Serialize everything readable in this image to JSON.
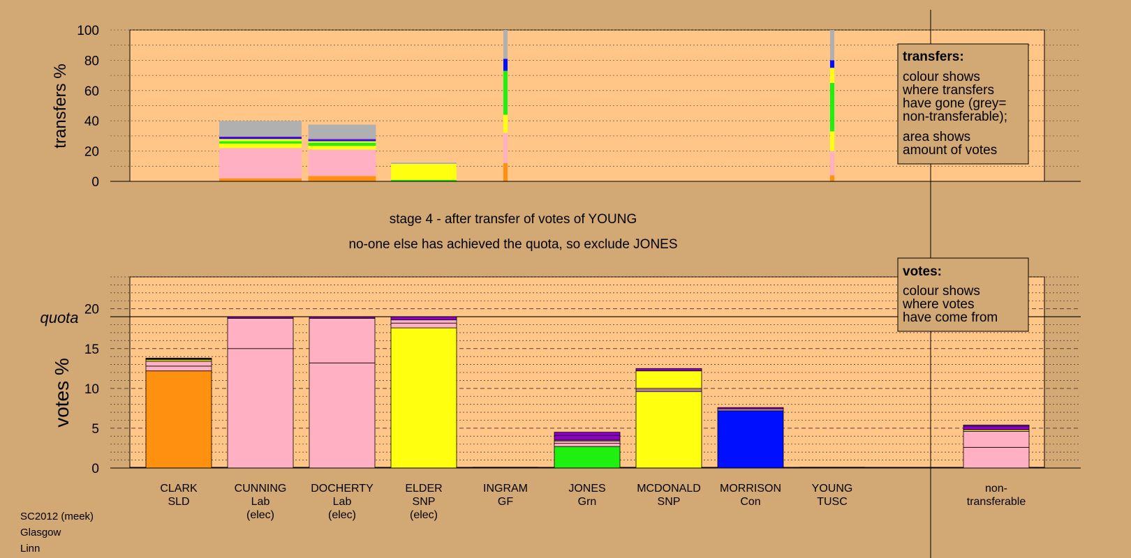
{
  "colors": {
    "background": "#d2a874",
    "plot_bg": "#ffc687",
    "SLD": "#ff9010",
    "Lab": "#ffb0c3",
    "SNP": "#ffff10",
    "GF": "#b0b0b0",
    "Grn": "#20f010",
    "Con": "#0010ff",
    "TUSC": "#8e00c8",
    "nontransferable": "#b0b0b0",
    "separator": "#000000"
  },
  "stage_title": "stage 4 - after transfer of votes of YOUNG",
  "stage_subtitle": "no-one else has achieved the quota, so exclude JONES",
  "footer": [
    "SC2012 (meek)",
    "Glasgow",
    "Linn"
  ],
  "legend_transfers": {
    "heading": "transfers:",
    "lines_a": [
      "colour shows",
      "where transfers",
      "have gone (grey=",
      "non-transferable);"
    ],
    "lines_b": [
      "area shows",
      "amount of votes"
    ]
  },
  "legend_votes": {
    "heading": "votes:",
    "lines": [
      "colour shows",
      "where votes",
      "have come from"
    ]
  },
  "chart_data": [
    {
      "type": "bar",
      "stacked": true,
      "ylabel": "transfers %",
      "ylim": [
        0,
        100
      ],
      "yticks": [
        0,
        20,
        40,
        60,
        80,
        100
      ],
      "grid": true,
      "categories": [
        "CLARK SLD",
        "CUNNING Lab (elec)",
        "DOCHERTY Lab (elec)",
        "ELDER SNP (elec)",
        "INGRAM GF",
        "JONES Grn",
        "MCDONALD SNP",
        "MORRISON Con",
        "YOUNG TUSC"
      ],
      "note": "segment colours show destination party; bar width shows amount of votes",
      "bars": [
        {
          "candidate": "CUNNING",
          "width_votes": 3.9,
          "segments": [
            {
              "to": "SLD",
              "value": 2
            },
            {
              "to": "Lab",
              "value": 20
            },
            {
              "to": "SNP",
              "value": 3
            },
            {
              "to": "Grn",
              "value": 1.5
            },
            {
              "to": "SNP",
              "value": 1.5
            },
            {
              "to": "Con",
              "value": 1
            },
            {
              "to": "TUSC",
              "value": 0.5
            },
            {
              "to": "nontransferable",
              "value": 10.5
            }
          ]
        },
        {
          "candidate": "DOCHERTY",
          "width_votes": 3.2,
          "segments": [
            {
              "to": "SLD",
              "value": 3.5
            },
            {
              "to": "Lab",
              "value": 17.5
            },
            {
              "to": "SNP",
              "value": 2.5
            },
            {
              "to": "Grn",
              "value": 2
            },
            {
              "to": "SNP",
              "value": 1
            },
            {
              "to": "Con",
              "value": 1
            },
            {
              "to": "TUSC",
              "value": 0.5
            },
            {
              "to": "nontransferable",
              "value": 9.5
            }
          ]
        },
        {
          "candidate": "ELDER",
          "width_votes": 3.1,
          "segments": [
            {
              "to": "Grn",
              "value": 1
            },
            {
              "to": "SNP",
              "value": 10.5
            },
            {
              "to": "nontransferable",
              "value": 1
            }
          ]
        },
        {
          "candidate": "INGRAM",
          "width_votes": 0.2,
          "segments": [
            {
              "to": "SLD",
              "value": 12
            },
            {
              "to": "Lab",
              "value": 20
            },
            {
              "to": "SNP",
              "value": 12
            },
            {
              "to": "Grn",
              "value": 29
            },
            {
              "to": "Con",
              "value": 8
            },
            {
              "to": "nontransferable",
              "value": 19
            }
          ]
        },
        {
          "candidate": "YOUNG",
          "width_votes": 0.2,
          "segments": [
            {
              "to": "SLD",
              "value": 4
            },
            {
              "to": "Lab",
              "value": 16
            },
            {
              "to": "SNP",
              "value": 13
            },
            {
              "to": "Grn",
              "value": 32
            },
            {
              "to": "SNP",
              "value": 10
            },
            {
              "to": "Con",
              "value": 5
            },
            {
              "to": "nontransferable",
              "value": 20
            }
          ]
        }
      ]
    },
    {
      "type": "bar",
      "stacked": true,
      "ylabel": "votes %",
      "ylim": [
        0,
        24
      ],
      "yticks": [
        0,
        5,
        10,
        15,
        20
      ],
      "quota_label": "quota",
      "quota": 19.0,
      "grid": true,
      "groups": [
        {
          "name": "CLARK",
          "party": "SLD",
          "note": ""
        },
        {
          "name": "CUNNING",
          "party": "Lab",
          "note": "(elec)"
        },
        {
          "name": "DOCHERTY",
          "party": "Lab",
          "note": "(elec)"
        },
        {
          "name": "ELDER",
          "party": "SNP",
          "note": "(elec)"
        },
        {
          "name": "INGRAM",
          "party": "GF",
          "note": ""
        },
        {
          "name": "JONES",
          "party": "Grn",
          "note": ""
        },
        {
          "name": "MCDONALD",
          "party": "SNP",
          "note": ""
        },
        {
          "name": "MORRISON",
          "party": "Con",
          "note": ""
        },
        {
          "name": "YOUNG",
          "party": "TUSC",
          "note": ""
        },
        {
          "name": "non-",
          "party": "transferable",
          "note": ""
        }
      ],
      "bars": [
        {
          "candidate": "CLARK",
          "segments": [
            {
              "from": "SLD",
              "value": 12.2
            },
            {
              "from": "Lab",
              "value": 0.6
            },
            {
              "from": "Lab",
              "value": 0.6
            },
            {
              "from": "SNP",
              "value": 0.2
            },
            {
              "from": "Grn",
              "value": 0.1
            },
            {
              "from": "TUSC",
              "value": 0.1
            }
          ]
        },
        {
          "candidate": "CUNNING",
          "segments": [
            {
              "from": "Lab",
              "value": 15.0
            },
            {
              "from": "Lab",
              "value": 3.8
            },
            {
              "from": "TUSC",
              "value": 0.2
            }
          ]
        },
        {
          "candidate": "DOCHERTY",
          "segments": [
            {
              "from": "Lab",
              "value": 13.2
            },
            {
              "from": "Lab",
              "value": 5.6
            },
            {
              "from": "TUSC",
              "value": 0.2
            }
          ]
        },
        {
          "candidate": "ELDER",
          "segments": [
            {
              "from": "SNP",
              "value": 17.6
            },
            {
              "from": "Lab",
              "value": 0.6
            },
            {
              "from": "Lab",
              "value": 0.4
            },
            {
              "from": "TUSC",
              "value": 0.4
            }
          ]
        },
        {
          "candidate": "INGRAM",
          "segments": []
        },
        {
          "candidate": "JONES",
          "segments": [
            {
              "from": "Grn",
              "value": 2.7
            },
            {
              "from": "Lab",
              "value": 0.4
            },
            {
              "from": "Lab",
              "value": 0.3
            },
            {
              "from": "SNP",
              "value": 0.1
            },
            {
              "from": "TUSC",
              "value": 0.6
            },
            {
              "from": "TUSC",
              "value": 0.4
            }
          ]
        },
        {
          "candidate": "MCDONALD",
          "segments": [
            {
              "from": "SNP",
              "value": 9.6
            },
            {
              "from": "Lab",
              "value": 0.2
            },
            {
              "from": "Lab",
              "value": 0.2
            },
            {
              "from": "SNP",
              "value": 2.2
            },
            {
              "from": "TUSC",
              "value": 0.3
            }
          ]
        },
        {
          "candidate": "MORRISON",
          "segments": [
            {
              "from": "Con",
              "value": 7.2
            },
            {
              "from": "Lab",
              "value": 0.2
            },
            {
              "from": "TUSC",
              "value": 0.2
            }
          ]
        },
        {
          "candidate": "YOUNG",
          "segments": []
        },
        {
          "candidate": "non-transferable",
          "segments": [
            {
              "from": "Lab",
              "value": 2.6
            },
            {
              "from": "Lab",
              "value": 2.0
            },
            {
              "from": "SNP",
              "value": 0.2
            },
            {
              "from": "TUSC",
              "value": 0.4
            },
            {
              "from": "TUSC",
              "value": 0.2
            }
          ]
        }
      ]
    }
  ]
}
